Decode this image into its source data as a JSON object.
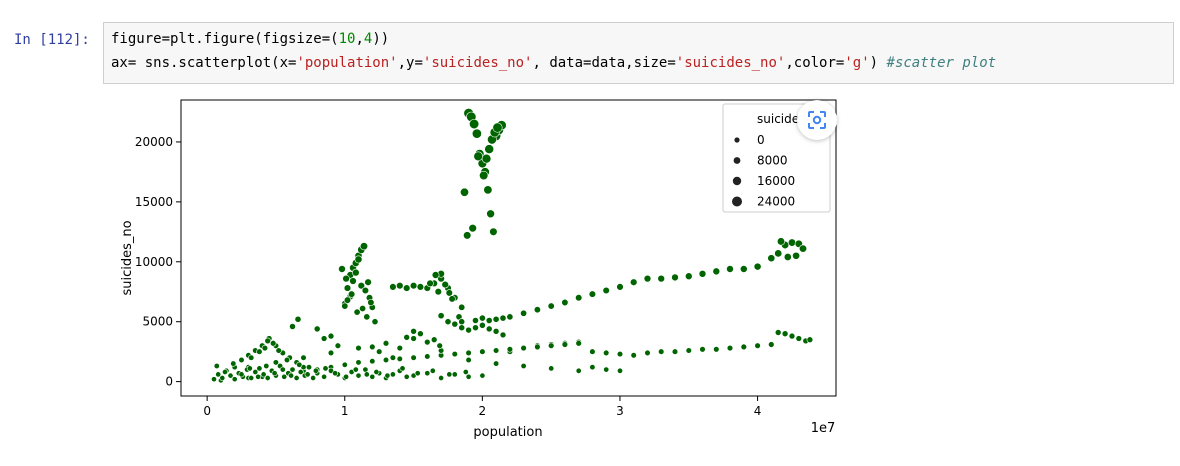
{
  "cell": {
    "prompt": "In [112]:",
    "code": {
      "l1_a": "figure=plt.figure(figsize=(",
      "l1_n1": "10",
      "l1_c": ",",
      "l1_n2": "4",
      "l1_e": "))",
      "l2_a": "ax= sns.scatterplot(x=",
      "l2_s1": "'population'",
      "l2_b": ",y=",
      "l2_s2": "'suicides_no'",
      "l2_c": ", data=data,size=",
      "l2_s3": "'suicides_no'",
      "l2_d": ",color=",
      "l2_s4": "'g'",
      "l2_e": ") ",
      "l2_cmt": "#scatter plot"
    }
  },
  "colors": {
    "marker": "#006400",
    "accent": "#303f9f"
  },
  "icons": {
    "lens": "google-lens-icon"
  },
  "chart_data": {
    "type": "scatter",
    "xlabel": "population",
    "ylabel": "suicides_no",
    "x_offset_label": "1e7",
    "xlim": [
      -1900000,
      45700000
    ],
    "ylim": [
      -1200000,
      23500
    ],
    "ylim_actual": [
      -1200,
      23500
    ],
    "xticks": [
      0,
      10000000,
      20000000,
      30000000,
      40000000
    ],
    "xtick_labels": [
      "0",
      "1",
      "2",
      "3",
      "4"
    ],
    "yticks": [
      0,
      5000,
      10000,
      15000,
      20000
    ],
    "ytick_labels": [
      "0",
      "5000",
      "10000",
      "15000",
      "20000"
    ],
    "legend": {
      "title": "suicides_no",
      "entries": [
        "0",
        "8000",
        "16000",
        "24000"
      ],
      "placement": "top-right"
    },
    "series": [
      {
        "x": [
          19000000,
          19200000,
          19400000,
          19600000,
          19800000,
          20000000,
          20200000,
          20400000,
          20600000,
          20800000,
          21000000,
          21200000,
          21400000,
          18700000,
          18900000,
          19300000,
          19700000,
          20300000,
          20500000,
          20100000,
          20700000,
          20900000,
          21100000
        ],
        "y": [
          22400,
          22100,
          21500,
          20700,
          19000,
          18200,
          17500,
          16000,
          14000,
          12500,
          20500,
          21000,
          21400,
          15800,
          12200,
          12800,
          18800,
          18600,
          19400,
          17200,
          20200,
          20800,
          21200
        ]
      },
      {
        "x": [
          10000000,
          10200000,
          10400000,
          10600000,
          10800000,
          11000000,
          11200000,
          11400000,
          11000000,
          10800000,
          10600000,
          10400000,
          10200000,
          10000000,
          11200000,
          11500000,
          11800000,
          12000000,
          11600000,
          11300000,
          10900000,
          10500000,
          10100000,
          9800000,
          12200000,
          11700000,
          11900000
        ],
        "y": [
          6500,
          7800,
          8900,
          9500,
          9900,
          10500,
          11000,
          11300,
          10200,
          9100,
          8400,
          7100,
          6800,
          6300,
          8000,
          7600,
          7000,
          6200,
          5400,
          6100,
          5800,
          7300,
          8600,
          9400,
          5000,
          8300,
          6600
        ]
      },
      {
        "x": [
          13500000,
          14000000,
          14500000,
          15000000,
          15500000,
          16000000,
          16500000,
          17000000,
          17500000,
          18000000,
          18500000,
          16200000,
          16800000,
          17300000,
          17800000,
          18300000,
          17000000,
          16600000,
          17600000
        ],
        "y": [
          7900,
          8000,
          7800,
          8000,
          7900,
          7800,
          8200,
          8600,
          7800,
          7000,
          6200,
          8200,
          7500,
          8100,
          6900,
          5400,
          9000,
          8900,
          7400
        ]
      },
      {
        "x": [
          18500000,
          19500000,
          20000000,
          20500000,
          21000000,
          21500000,
          22000000,
          23000000,
          24000000,
          25000000,
          26000000,
          27000000,
          28000000,
          29000000,
          30000000,
          31000000,
          32000000,
          33000000,
          34000000,
          35000000,
          36000000,
          37000000,
          38000000,
          39000000,
          40000000,
          41000000,
          41500000,
          42000000,
          42500000,
          43000000,
          43300000,
          42800000,
          42200000,
          41700000
        ],
        "y": [
          5000,
          5100,
          5300,
          5100,
          5200,
          5300,
          5400,
          5700,
          6000,
          6300,
          6600,
          7000,
          7300,
          7600,
          7900,
          8300,
          8600,
          8600,
          8700,
          8800,
          9000,
          9200,
          9400,
          9400,
          9600,
          10300,
          10700,
          11400,
          11600,
          11500,
          11100,
          10500,
          10400,
          11700
        ]
      },
      {
        "x": [
          17000000,
          17500000,
          18000000,
          18500000,
          19000000,
          19500000,
          20000000,
          20500000,
          21000000,
          21500000,
          22000000,
          23000000,
          24000000,
          25000000,
          26000000,
          27000000,
          28000000,
          29000000,
          30000000,
          31000000,
          32000000,
          33000000,
          34000000,
          35000000,
          36000000,
          37000000,
          38000000,
          39000000,
          40000000,
          41000000,
          41500000,
          42000000,
          42500000,
          43000000,
          43500000,
          43800000
        ],
        "y": [
          5500,
          5000,
          4800,
          4500,
          4300,
          4500,
          4700,
          4400,
          4200,
          3900,
          2500,
          2800,
          3000,
          3100,
          3200,
          3300,
          2500,
          2400,
          2300,
          2200,
          2400,
          2500,
          2500,
          2600,
          2700,
          2700,
          2800,
          2900,
          3000,
          3100,
          4100,
          4000,
          3800,
          3600,
          3400,
          3500
        ]
      },
      {
        "x": [
          1000000,
          2000000,
          3000000,
          4000000,
          5000000,
          6000000,
          7000000,
          8000000,
          9000000,
          10000000,
          11000000,
          12000000,
          13000000,
          14000000,
          15000000,
          16000000,
          17000000,
          18000000,
          19000000,
          20000000,
          21000000,
          22000000,
          23000000,
          24000000,
          25000000,
          26000000,
          27000000,
          28000000,
          29000000,
          30000000,
          3000000,
          5000000,
          7000000,
          9000000,
          11000000,
          13000000,
          15000000,
          17000000,
          19000000,
          21000000,
          23000000,
          25000000,
          27000000
        ],
        "y": [
          100,
          200,
          300,
          400,
          500,
          700,
          900,
          1000,
          1200,
          1400,
          1600,
          1700,
          1800,
          1900,
          2000,
          2100,
          2200,
          2300,
          2400,
          2500,
          2600,
          2700,
          2800,
          2900,
          3000,
          3100,
          3200,
          1200,
          1000,
          900,
          1200,
          1600,
          2000,
          2400,
          2800,
          3200,
          3600,
          2600,
          1800,
          1500,
          1300,
          1100,
          900
        ]
      },
      {
        "x": [
          2000000,
          2500000,
          3000000,
          3500000,
          4000000,
          4500000,
          5000000,
          5500000,
          6000000,
          6500000,
          7000000,
          4200000,
          4800000,
          5200000,
          5800000,
          6200000,
          6600000,
          3200000,
          3800000,
          4400000,
          8000000,
          9000000,
          9500000,
          8500000,
          12000000,
          13000000,
          14000000,
          15500000,
          16500000,
          12500000,
          14500000,
          16000000,
          16900000,
          15000000,
          13500000
        ],
        "y": [
          1200,
          1800,
          2200,
          2600,
          3000,
          3600,
          3000,
          2400,
          2000,
          1600,
          1200,
          2800,
          3200,
          2600,
          1800,
          4600,
          5200,
          2000,
          2500,
          3400,
          4400,
          3800,
          3000,
          3600,
          2900,
          3200,
          2800,
          4000,
          3500,
          2500,
          3700,
          3300,
          3000,
          4200,
          2000
        ]
      },
      {
        "x": [
          500000,
          800000,
          1100000,
          1400000,
          1700000,
          2000000,
          2300000,
          2600000,
          2900000,
          3200000,
          3500000,
          3800000,
          4100000,
          4400000,
          4700000,
          5000000,
          5300000,
          5600000,
          5900000,
          6200000,
          6500000,
          6800000,
          7100000,
          7400000,
          7700000,
          8000000,
          8500000,
          9000000,
          9500000,
          10000000,
          10500000,
          11000000,
          11500000,
          12000000,
          12500000,
          13000000,
          13500000,
          14000000,
          14500000,
          15000000,
          16000000,
          17000000,
          18000000,
          19000000,
          20000000,
          700000,
          1300000,
          1900000,
          2500000,
          3100000,
          3700000,
          4300000,
          4900000,
          5500000,
          6100000,
          6700000,
          7300000,
          7900000,
          8600000,
          9300000,
          10100000,
          10800000,
          11600000,
          12300000,
          13100000,
          14200000,
          15300000,
          16400000,
          17600000,
          18800000
        ],
        "y": [
          200,
          600,
          300,
          900,
          500,
          1200,
          700,
          400,
          1000,
          300,
          800,
          1100,
          600,
          300,
          900,
          500,
          1300,
          400,
          700,
          1000,
          300,
          800,
          500,
          1200,
          300,
          700,
          400,
          900,
          600,
          300,
          800,
          500,
          1000,
          400,
          700,
          300,
          600,
          900,
          400,
          500,
          700,
          300,
          600,
          400,
          500,
          1300,
          800,
          1500,
          600,
          1100,
          400,
          1300,
          700,
          1000,
          500,
          1400,
          600,
          900,
          1100,
          700,
          400,
          1000,
          600,
          800,
          500,
          1100,
          700,
          900,
          600,
          800
        ]
      }
    ]
  }
}
